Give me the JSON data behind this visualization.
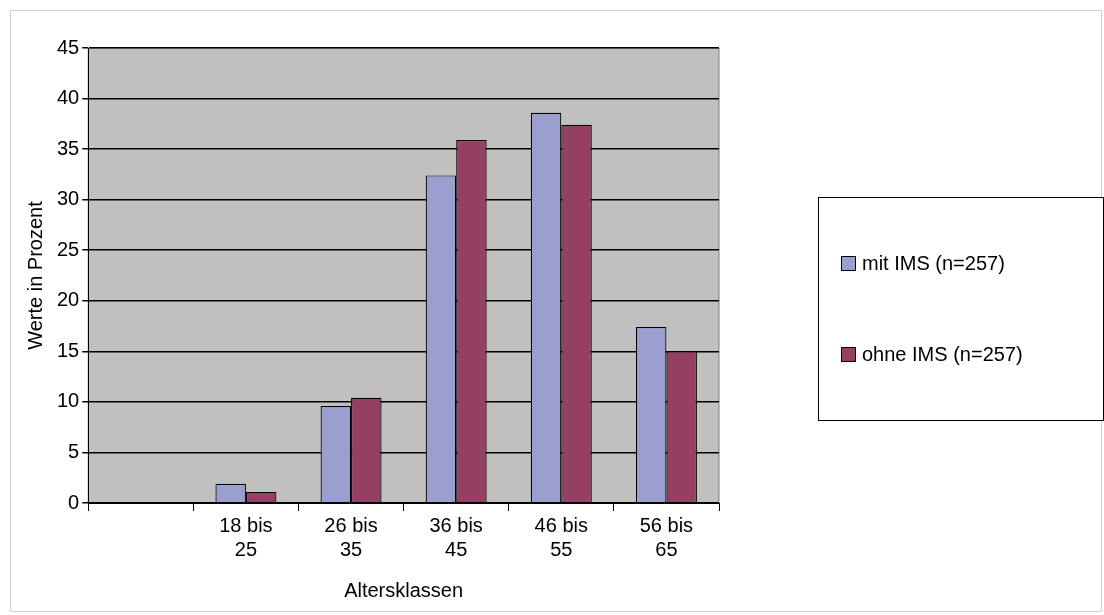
{
  "chart_data": {
    "type": "bar",
    "xlabel": "Altersklassen",
    "ylabel": "Werte in Prozent",
    "categories": [
      null,
      "18 bis 25",
      "26 bis 35",
      "36 bis 45",
      "46 bis 55",
      "56 bis 65"
    ],
    "series": [
      {
        "name": "mit IMS (n=257)",
        "color": "#9a9fcf",
        "values": [
          null,
          1.9,
          9.6,
          32.4,
          38.6,
          17.4
        ]
      },
      {
        "name": "ohne IMS (n=257)",
        "color": "#953f63",
        "values": [
          null,
          1.1,
          10.4,
          35.9,
          37.4,
          15.0
        ]
      }
    ],
    "ylim": [
      0,
      45
    ],
    "yticks": [
      0,
      5,
      10,
      15,
      20,
      25,
      30,
      35,
      40,
      45
    ],
    "grid": "y",
    "legend": "right"
  }
}
